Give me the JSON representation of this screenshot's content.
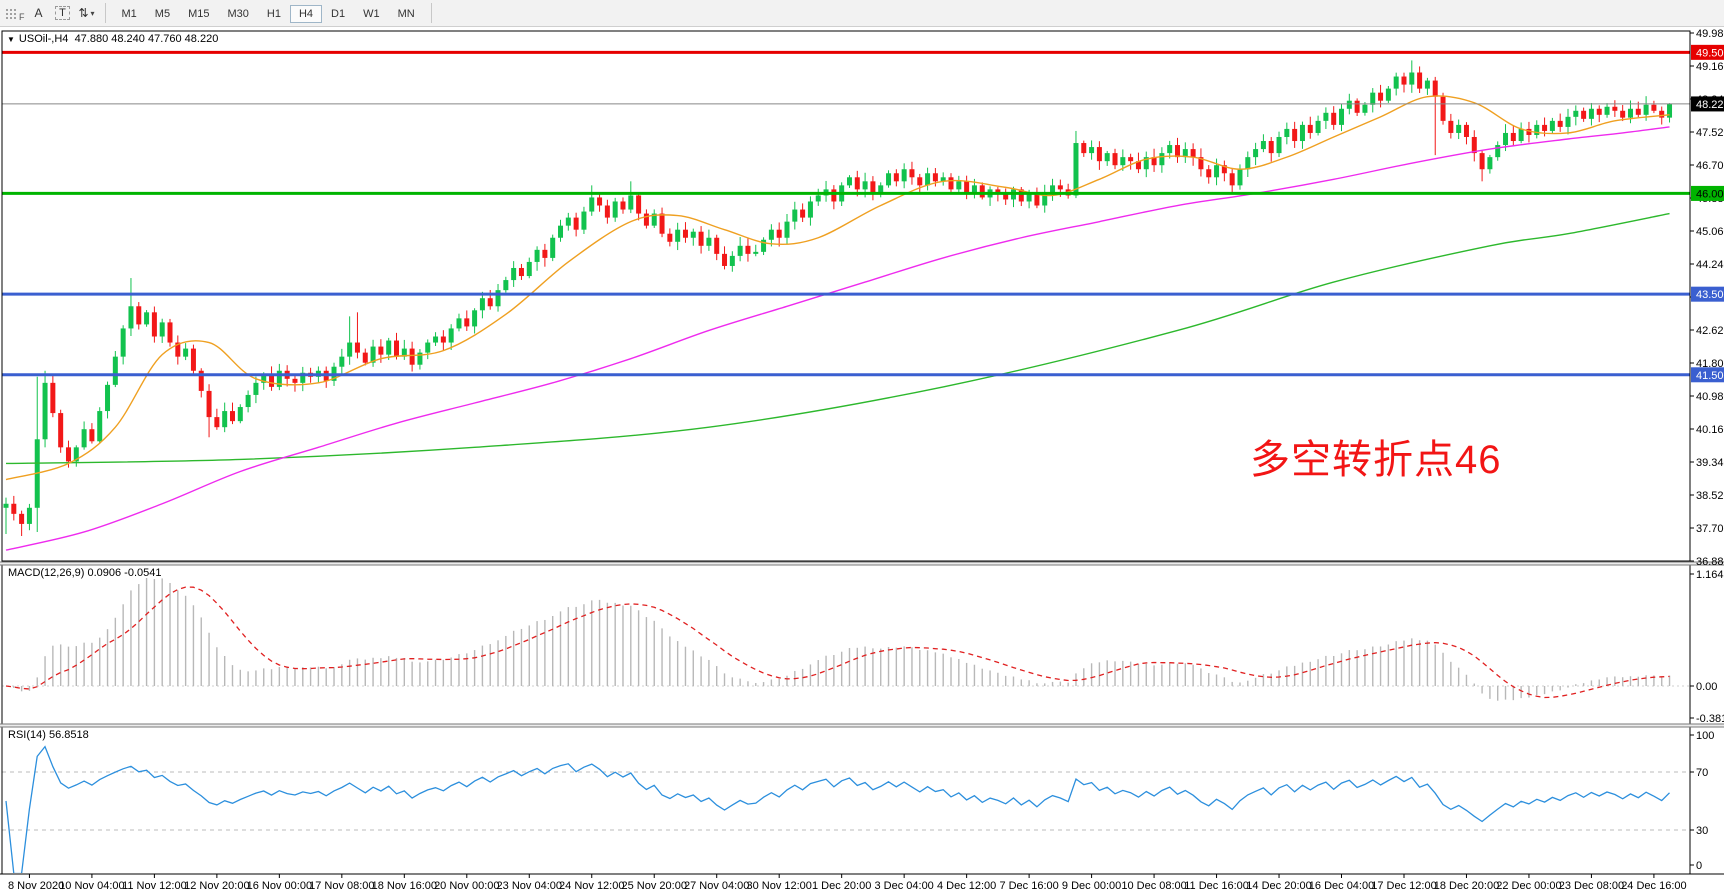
{
  "toolbar": {
    "grip_label": "F",
    "tools": [
      {
        "name": "annotations",
        "label": "A"
      },
      {
        "name": "text",
        "label": "T"
      },
      {
        "name": "scale",
        "label": "⇅"
      }
    ],
    "dropdown_caret": "▾",
    "timeframes": [
      "M1",
      "M5",
      "M15",
      "M30",
      "H1",
      "H4",
      "D1",
      "W1",
      "MN"
    ],
    "active_timeframe": "H4"
  },
  "chart": {
    "title_caret": "▼",
    "symbol_period": "USOil-,H4",
    "ohlc_text": "47.880 48.240 47.760 48.220",
    "annotation": {
      "text": "多空转折点46",
      "color": "#f21515"
    },
    "colors": {
      "up_candle": "#12c24e",
      "down_candle": "#f21818",
      "fast_ma": "#efa021",
      "mid_ma": "#ee2bee",
      "slow_ma": "#2db82d",
      "macd_hist": "#b8b8b8",
      "macd_signal": "#e02020",
      "rsi_line": "#2c8fdd",
      "current_price_line": "#888888",
      "axis_text": "#000000"
    }
  },
  "panes": {
    "macd": {
      "label_name": "MACD(12,26,9)",
      "label_values": "0.0906 -0.0541",
      "axis_labels": [
        "1.1646",
        "0.00",
        "-0.3812"
      ]
    },
    "rsi": {
      "label_name": "RSI(14)",
      "label_values": "56.8518",
      "axis_labels": [
        "100",
        "70",
        "30",
        "0"
      ]
    }
  },
  "price_axis": {
    "tick_labels": [
      "49.980",
      "49.160",
      "48.340",
      "47.520",
      "46.700",
      "45.880",
      "45.060",
      "44.240",
      "43.420",
      "42.620",
      "41.800",
      "40.980",
      "40.160",
      "39.340",
      "38.520",
      "37.700",
      "36.880"
    ],
    "badges": [
      {
        "text": "49.500",
        "price": 49.5,
        "bg": "#e60000",
        "fg": "#ffffff"
      },
      {
        "text": "46.000",
        "price": 46.0,
        "bg": "#00b400",
        "fg": "#000000"
      },
      {
        "text": "43.500",
        "price": 43.5,
        "bg": "#3a5fd0",
        "fg": "#ffffff"
      },
      {
        "text": "41.500",
        "price": 41.5,
        "bg": "#3a5fd0",
        "fg": "#ffffff"
      }
    ],
    "current_badge": {
      "text": "48.220",
      "price": 48.22,
      "bg": "#000000",
      "fg": "#ffffff"
    }
  },
  "chart_data": {
    "type": "candlestick",
    "symbol": "USOil-",
    "period": "H4",
    "current_bar": {
      "open": 47.88,
      "high": 48.24,
      "low": 47.76,
      "close": 48.22
    },
    "price_anchor": {
      "top_price": 49.98,
      "bottom_price": 36.88
    },
    "closes": [
      38.3,
      38.05,
      37.8,
      38.2,
      39.9,
      41.3,
      40.55,
      39.7,
      39.35,
      39.7,
      40.15,
      39.85,
      40.6,
      41.25,
      41.95,
      42.65,
      43.2,
      42.75,
      43.05,
      42.45,
      42.8,
      42.3,
      41.95,
      42.15,
      41.6,
      41.1,
      40.45,
      40.2,
      40.6,
      40.35,
      40.7,
      41.0,
      41.3,
      41.5,
      41.2,
      41.6,
      41.4,
      41.3,
      41.55,
      41.45,
      41.6,
      41.35,
      41.7,
      41.95,
      42.3,
      42.05,
      41.8,
      42.2,
      42.0,
      42.35,
      41.95,
      42.15,
      41.75,
      42.05,
      42.3,
      42.45,
      42.3,
      42.65,
      42.9,
      42.7,
      43.1,
      43.4,
      43.2,
      43.6,
      43.85,
      44.15,
      43.95,
      44.3,
      44.6,
      44.4,
      44.9,
      45.2,
      45.4,
      45.1,
      45.55,
      45.9,
      45.7,
      45.4,
      45.8,
      45.6,
      45.95,
      45.5,
      45.2,
      45.5,
      45.0,
      44.8,
      45.1,
      44.9,
      45.05,
      44.7,
      44.9,
      44.5,
      44.2,
      44.45,
      44.7,
      44.5,
      44.55,
      44.85,
      45.1,
      44.9,
      45.3,
      45.6,
      45.4,
      45.8,
      45.95,
      46.1,
      45.8,
      46.2,
      46.4,
      46.1,
      46.3,
      46.0,
      46.2,
      46.5,
      46.3,
      46.6,
      46.4,
      46.2,
      46.5,
      46.3,
      46.4,
      46.1,
      46.3,
      46.0,
      46.2,
      45.9,
      46.1,
      46.0,
      45.85,
      46.1,
      45.8,
      46.0,
      45.7,
      46.0,
      46.2,
      46.1,
      45.95,
      47.25,
      47.0,
      47.15,
      46.8,
      47.0,
      46.7,
      46.9,
      46.8,
      46.6,
      46.9,
      46.7,
      47.0,
      47.2,
      46.9,
      47.1,
      46.9,
      46.6,
      46.4,
      46.7,
      46.5,
      46.2,
      46.6,
      46.9,
      47.1,
      47.3,
      47.0,
      47.4,
      47.6,
      47.3,
      47.7,
      47.5,
      47.8,
      48.0,
      47.7,
      48.1,
      48.3,
      48.0,
      48.2,
      48.5,
      48.3,
      48.6,
      48.9,
      48.7,
      49.0,
      48.6,
      48.8,
      48.4,
      47.8,
      47.5,
      47.7,
      47.4,
      47.0,
      46.6,
      46.9,
      47.2,
      47.5,
      47.3,
      47.6,
      47.45,
      47.7,
      47.55,
      47.8,
      47.65,
      47.9,
      48.05,
      47.85,
      48.1,
      47.95,
      48.15,
      48.05,
      47.88,
      48.1,
      47.95,
      48.2,
      48.05,
      47.88,
      48.22
    ],
    "wick_seed": 42,
    "extra_wicks": {
      "0": [
        null,
        37.55
      ],
      "2": [
        null,
        37.5
      ],
      "4": [
        41.45,
        37.6
      ],
      "5": [
        41.6,
        null
      ],
      "16": [
        43.9,
        null
      ],
      "26": [
        null,
        39.95
      ],
      "44": [
        42.95,
        null
      ],
      "45": [
        43.05,
        null
      ],
      "75": [
        46.2,
        null
      ],
      "80": [
        46.3,
        null
      ],
      "137": [
        47.55,
        null
      ],
      "180": [
        49.3,
        null
      ],
      "181": [
        49.15,
        null
      ],
      "183": [
        null,
        46.95
      ],
      "189": [
        null,
        46.3
      ],
      "213": [
        48.24,
        47.76
      ]
    },
    "horizontal_levels": [
      {
        "price": 49.5,
        "color": "#e60000",
        "width": 3
      },
      {
        "price": 46.0,
        "color": "#00b400",
        "width": 3
      },
      {
        "price": 43.5,
        "color": "#3a5fd0",
        "width": 3
      },
      {
        "price": 41.5,
        "color": "#3a5fd0",
        "width": 3
      }
    ],
    "current_price": 48.22,
    "ma_lines": [
      {
        "name": "slow-ma",
        "color": "#2db82d",
        "points": [
          [
            0,
            39.3
          ],
          [
            30,
            39.4
          ],
          [
            60,
            39.7
          ],
          [
            90,
            40.2
          ],
          [
            120,
            41.2
          ],
          [
            150,
            42.6
          ],
          [
            170,
            43.8
          ],
          [
            190,
            44.7
          ],
          [
            200,
            45.0
          ],
          [
            213,
            45.5
          ]
        ]
      },
      {
        "name": "mid-ma",
        "color": "#ee2bee",
        "points": [
          [
            0,
            37.15
          ],
          [
            10,
            37.6
          ],
          [
            20,
            38.3
          ],
          [
            30,
            39.1
          ],
          [
            40,
            39.7
          ],
          [
            50,
            40.3
          ],
          [
            60,
            40.8
          ],
          [
            70,
            41.3
          ],
          [
            80,
            41.9
          ],
          [
            90,
            42.6
          ],
          [
            100,
            43.2
          ],
          [
            110,
            43.8
          ],
          [
            120,
            44.4
          ],
          [
            130,
            44.9
          ],
          [
            140,
            45.3
          ],
          [
            150,
            45.7
          ],
          [
            160,
            46.0
          ],
          [
            170,
            46.35
          ],
          [
            180,
            46.75
          ],
          [
            190,
            47.1
          ],
          [
            200,
            47.35
          ],
          [
            207,
            47.5
          ],
          [
            213,
            47.65
          ]
        ]
      },
      {
        "name": "fast-ma",
        "color": "#efa021",
        "points": [
          [
            0,
            38.9
          ],
          [
            8,
            39.3
          ],
          [
            14,
            40.2
          ],
          [
            20,
            42.0
          ],
          [
            26,
            42.3
          ],
          [
            32,
            41.4
          ],
          [
            40,
            41.3
          ],
          [
            48,
            41.9
          ],
          [
            56,
            42.1
          ],
          [
            64,
            43.0
          ],
          [
            72,
            44.3
          ],
          [
            80,
            45.3
          ],
          [
            86,
            45.45
          ],
          [
            92,
            45.1
          ],
          [
            98,
            44.75
          ],
          [
            104,
            44.9
          ],
          [
            112,
            45.7
          ],
          [
            120,
            46.3
          ],
          [
            128,
            46.15
          ],
          [
            134,
            45.95
          ],
          [
            140,
            46.35
          ],
          [
            146,
            46.85
          ],
          [
            152,
            46.9
          ],
          [
            158,
            46.6
          ],
          [
            164,
            46.9
          ],
          [
            170,
            47.4
          ],
          [
            176,
            47.9
          ],
          [
            182,
            48.4
          ],
          [
            188,
            48.25
          ],
          [
            194,
            47.6
          ],
          [
            200,
            47.5
          ],
          [
            206,
            47.8
          ],
          [
            213,
            47.95
          ]
        ]
      }
    ],
    "indicators": {
      "macd": {
        "params": [
          12,
          26,
          9
        ],
        "main_value": 0.0906,
        "signal_value": -0.0541,
        "range": [
          -0.3812,
          1.1646
        ]
      },
      "rsi": {
        "period": 14,
        "value": 56.8518,
        "range": [
          0,
          100
        ],
        "levels": [
          70,
          30
        ]
      }
    },
    "time_labels": [
      "8 Nov 2020",
      "10 Nov 04:00",
      "11 Nov 12:00",
      "12 Nov 20:00",
      "16 Nov 00:00",
      "17 Nov 08:00",
      "18 Nov 16:00",
      "20 Nov 00:00",
      "23 Nov 04:00",
      "24 Nov 12:00",
      "25 Nov 20:00",
      "27 Nov 04:00",
      "30 Nov 12:00",
      "1 Dec 20:00",
      "3 Dec 04:00",
      "4 Dec 12:00",
      "7 Dec 16:00",
      "9 Dec 00:00",
      "10 Dec 08:00",
      "11 Dec 16:00",
      "14 Dec 20:00",
      "16 Dec 04:00",
      "17 Dec 12:00",
      "18 Dec 20:00",
      "22 Dec 00:00",
      "23 Dec 08:00",
      "24 Dec 16:00"
    ]
  }
}
